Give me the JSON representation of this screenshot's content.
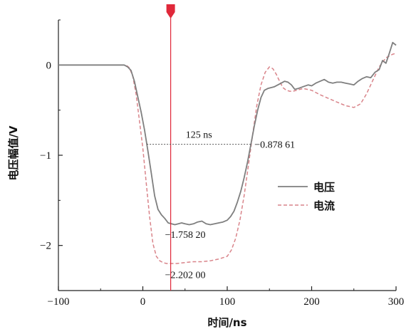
{
  "chart_data": {
    "type": "line",
    "xlabel": "时间/ns",
    "ylabel": "电压幅值/V",
    "xlim": [
      -100,
      300
    ],
    "ylim": [
      -2.5,
      0.5
    ],
    "xticks": [
      -100,
      0,
      100,
      200,
      300
    ],
    "xtick_labels": [
      "−100",
      "0",
      "100",
      "200",
      "300"
    ],
    "yticks": [
      0,
      -1,
      -2
    ],
    "ytick_labels": [
      "0",
      "−1",
      "−2"
    ],
    "legend_position": "right",
    "marker": {
      "x": 33,
      "color": "#e0283a"
    },
    "series": [
      {
        "name": "电压",
        "style": "solid",
        "color": "#7f7f7f",
        "x": [
          -100,
          -80,
          -60,
          -40,
          -30,
          -22,
          -18,
          -14,
          -10,
          -6,
          -2,
          2,
          6,
          10,
          14,
          18,
          22,
          26,
          30,
          34,
          38,
          42,
          46,
          50,
          55,
          60,
          65,
          70,
          75,
          80,
          85,
          90,
          95,
          100,
          104,
          108,
          112,
          116,
          120,
          124,
          128,
          132,
          136,
          140,
          144,
          148,
          152,
          156,
          160,
          164,
          168,
          172,
          176,
          180,
          184,
          190,
          196,
          200,
          205,
          210,
          215,
          220,
          225,
          230,
          235,
          240,
          245,
          250,
          255,
          260,
          265,
          270,
          275,
          280,
          284,
          288,
          292,
          296,
          300
        ],
        "y": [
          0,
          0,
          0,
          0,
          0,
          0,
          -0.02,
          -0.06,
          -0.18,
          -0.35,
          -0.52,
          -0.72,
          -0.95,
          -1.2,
          -1.45,
          -1.6,
          -1.66,
          -1.7,
          -1.75,
          -1.76,
          -1.77,
          -1.76,
          -1.75,
          -1.76,
          -1.77,
          -1.76,
          -1.74,
          -1.73,
          -1.76,
          -1.77,
          -1.76,
          -1.75,
          -1.74,
          -1.72,
          -1.68,
          -1.62,
          -1.52,
          -1.4,
          -1.25,
          -1.08,
          -0.88,
          -0.68,
          -0.5,
          -0.36,
          -0.28,
          -0.26,
          -0.25,
          -0.24,
          -0.22,
          -0.2,
          -0.18,
          -0.19,
          -0.22,
          -0.27,
          -0.26,
          -0.24,
          -0.22,
          -0.23,
          -0.2,
          -0.18,
          -0.16,
          -0.19,
          -0.2,
          -0.19,
          -0.19,
          -0.2,
          -0.21,
          -0.22,
          -0.18,
          -0.15,
          -0.13,
          -0.14,
          -0.08,
          -0.05,
          0.05,
          0.02,
          0.13,
          0.25,
          0.22
        ]
      },
      {
        "name": "电流",
        "style": "dashed",
        "color": "#d9848a",
        "x": [
          -100,
          -80,
          -60,
          -40,
          -30,
          -20,
          -16,
          -12,
          -8,
          -4,
          0,
          4,
          8,
          12,
          16,
          20,
          24,
          28,
          33,
          40,
          50,
          60,
          70,
          80,
          90,
          100,
          105,
          110,
          115,
          120,
          125,
          130,
          135,
          140,
          145,
          150,
          154,
          158,
          162,
          166,
          170,
          174,
          178,
          182,
          186,
          190,
          195,
          200,
          210,
          220,
          230,
          240,
          250,
          258,
          265,
          272,
          280,
          288,
          296,
          300
        ],
        "y": [
          0,
          0,
          0,
          0,
          0,
          0,
          -0.03,
          -0.12,
          -0.32,
          -0.62,
          -0.92,
          -1.3,
          -1.68,
          -1.98,
          -2.12,
          -2.17,
          -2.19,
          -2.2,
          -2.2,
          -2.2,
          -2.19,
          -2.18,
          -2.18,
          -2.17,
          -2.15,
          -2.12,
          -2.05,
          -1.92,
          -1.72,
          -1.45,
          -1.12,
          -0.78,
          -0.45,
          -0.22,
          -0.08,
          -0.02,
          -0.04,
          -0.1,
          -0.18,
          -0.25,
          -0.28,
          -0.29,
          -0.29,
          -0.28,
          -0.27,
          -0.26,
          -0.27,
          -0.28,
          -0.33,
          -0.37,
          -0.41,
          -0.45,
          -0.47,
          -0.43,
          -0.32,
          -0.18,
          -0.02,
          0.08,
          0.12,
          0.13
        ]
      }
    ],
    "annotations": [
      {
        "text": "125 ns"
      },
      {
        "text": "−0.878 61"
      },
      {
        "text": "−1.758 20"
      },
      {
        "text": "−2.202 00"
      }
    ]
  }
}
